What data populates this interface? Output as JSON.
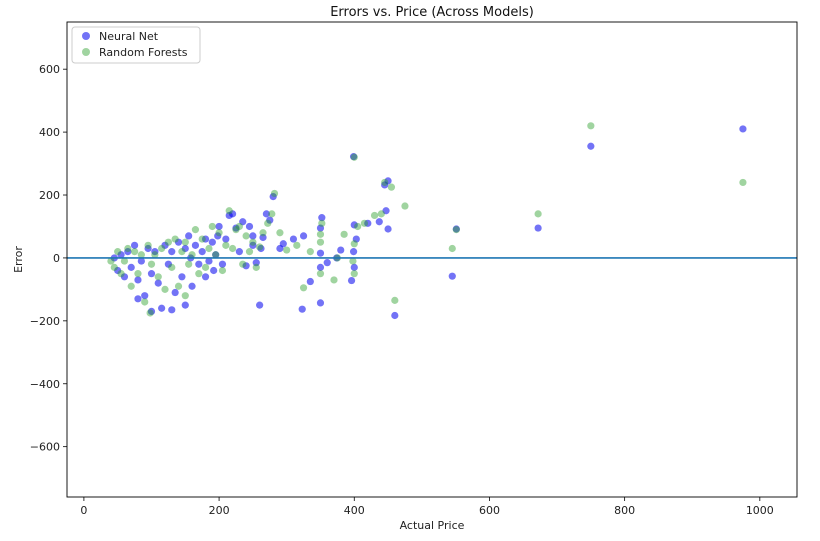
{
  "chart_data": {
    "type": "scatter",
    "title": "Errors vs. Price (Across Models)",
    "xlabel": "Actual Price",
    "ylabel": "Error",
    "xlim": [
      -25,
      1055
    ],
    "ylim": [
      -760,
      750
    ],
    "xticks": [
      0,
      200,
      400,
      600,
      800,
      1000
    ],
    "yticks": [
      -600,
      -400,
      -200,
      0,
      200,
      400,
      600
    ],
    "xtick_labels": [
      "0",
      "200",
      "400",
      "600",
      "800",
      "1000"
    ],
    "ytick_labels": [
      "−600",
      "−400",
      "−200",
      "0",
      "200",
      "400",
      "600"
    ],
    "reference_line_y": 0,
    "legend_position": "upper-left",
    "grid": false,
    "series": [
      {
        "name": "Neural Net",
        "color": "#0000ee",
        "points": [
          [
            975,
            410
          ],
          [
            750,
            355
          ],
          [
            672,
            95
          ],
          [
            551,
            92
          ],
          [
            545,
            -58
          ],
          [
            460,
            -183
          ],
          [
            450,
            245
          ],
          [
            445,
            232
          ],
          [
            447,
            150
          ],
          [
            450,
            92
          ],
          [
            437,
            115
          ],
          [
            420,
            110
          ],
          [
            399,
            322
          ],
          [
            400,
            105
          ],
          [
            403,
            60
          ],
          [
            399,
            20
          ],
          [
            400,
            -30
          ],
          [
            396,
            -72
          ],
          [
            380,
            25
          ],
          [
            374,
            0
          ],
          [
            360,
            -15
          ],
          [
            352,
            128
          ],
          [
            350,
            95
          ],
          [
            350,
            15
          ],
          [
            350,
            -30
          ],
          [
            350,
            -143
          ],
          [
            335,
            -75
          ],
          [
            323,
            -163
          ],
          [
            325,
            70
          ],
          [
            310,
            60
          ],
          [
            295,
            45
          ],
          [
            290,
            30
          ],
          [
            280,
            195
          ],
          [
            275,
            120
          ],
          [
            270,
            140
          ],
          [
            265,
            65
          ],
          [
            262,
            30
          ],
          [
            260,
            -150
          ],
          [
            255,
            -15
          ],
          [
            250,
            70
          ],
          [
            250,
            40
          ],
          [
            245,
            100
          ],
          [
            240,
            -25
          ],
          [
            235,
            115
          ],
          [
            230,
            20
          ],
          [
            225,
            95
          ],
          [
            220,
            140
          ],
          [
            215,
            135
          ],
          [
            210,
            60
          ],
          [
            205,
            -20
          ],
          [
            200,
            100
          ],
          [
            198,
            70
          ],
          [
            195,
            10
          ],
          [
            192,
            -40
          ],
          [
            190,
            50
          ],
          [
            185,
            -10
          ],
          [
            180,
            60
          ],
          [
            180,
            -60
          ],
          [
            175,
            20
          ],
          [
            170,
            -20
          ],
          [
            165,
            40
          ],
          [
            160,
            -90
          ],
          [
            158,
            0
          ],
          [
            155,
            70
          ],
          [
            150,
            30
          ],
          [
            150,
            -150
          ],
          [
            145,
            -60
          ],
          [
            140,
            50
          ],
          [
            135,
            -110
          ],
          [
            130,
            20
          ],
          [
            130,
            -165
          ],
          [
            125,
            -20
          ],
          [
            120,
            40
          ],
          [
            115,
            -160
          ],
          [
            110,
            -80
          ],
          [
            105,
            20
          ],
          [
            100,
            -50
          ],
          [
            100,
            -170
          ],
          [
            95,
            30
          ],
          [
            90,
            -120
          ],
          [
            85,
            -10
          ],
          [
            80,
            -70
          ],
          [
            80,
            -130
          ],
          [
            75,
            40
          ],
          [
            70,
            -30
          ],
          [
            65,
            20
          ],
          [
            60,
            -60
          ],
          [
            55,
            10
          ],
          [
            50,
            -40
          ],
          [
            45,
            0
          ]
        ]
      },
      {
        "name": "Random Forests",
        "color": "#2ca02c",
        "points": [
          [
            975,
            240
          ],
          [
            750,
            420
          ],
          [
            672,
            140
          ],
          [
            551,
            90
          ],
          [
            545,
            30
          ],
          [
            460,
            -135
          ],
          [
            475,
            165
          ],
          [
            455,
            225
          ],
          [
            445,
            240
          ],
          [
            440,
            140
          ],
          [
            430,
            135
          ],
          [
            415,
            110
          ],
          [
            400,
            320
          ],
          [
            405,
            100
          ],
          [
            400,
            45
          ],
          [
            398,
            -10
          ],
          [
            400,
            -50
          ],
          [
            385,
            75
          ],
          [
            375,
            0
          ],
          [
            370,
            -70
          ],
          [
            352,
            110
          ],
          [
            350,
            75
          ],
          [
            350,
            50
          ],
          [
            350,
            -50
          ],
          [
            335,
            20
          ],
          [
            325,
            -95
          ],
          [
            315,
            40
          ],
          [
            300,
            25
          ],
          [
            290,
            80
          ],
          [
            282,
            205
          ],
          [
            278,
            140
          ],
          [
            272,
            110
          ],
          [
            265,
            80
          ],
          [
            260,
            35
          ],
          [
            255,
            -30
          ],
          [
            250,
            50
          ],
          [
            245,
            20
          ],
          [
            240,
            70
          ],
          [
            235,
            -20
          ],
          [
            230,
            100
          ],
          [
            225,
            90
          ],
          [
            220,
            30
          ],
          [
            215,
            150
          ],
          [
            210,
            40
          ],
          [
            205,
            -40
          ],
          [
            200,
            80
          ],
          [
            195,
            10
          ],
          [
            190,
            100
          ],
          [
            185,
            30
          ],
          [
            180,
            -30
          ],
          [
            175,
            60
          ],
          [
            170,
            -50
          ],
          [
            165,
            90
          ],
          [
            160,
            10
          ],
          [
            155,
            -20
          ],
          [
            150,
            50
          ],
          [
            150,
            -120
          ],
          [
            145,
            20
          ],
          [
            140,
            -90
          ],
          [
            135,
            60
          ],
          [
            130,
            -30
          ],
          [
            125,
            50
          ],
          [
            120,
            -100
          ],
          [
            115,
            30
          ],
          [
            110,
            -60
          ],
          [
            105,
            10
          ],
          [
            100,
            -20
          ],
          [
            98,
            -175
          ],
          [
            95,
            40
          ],
          [
            90,
            -140
          ],
          [
            85,
            10
          ],
          [
            80,
            -50
          ],
          [
            75,
            20
          ],
          [
            70,
            -90
          ],
          [
            65,
            30
          ],
          [
            60,
            -10
          ],
          [
            55,
            -50
          ],
          [
            50,
            20
          ],
          [
            45,
            -30
          ],
          [
            40,
            -10
          ]
        ]
      }
    ]
  }
}
